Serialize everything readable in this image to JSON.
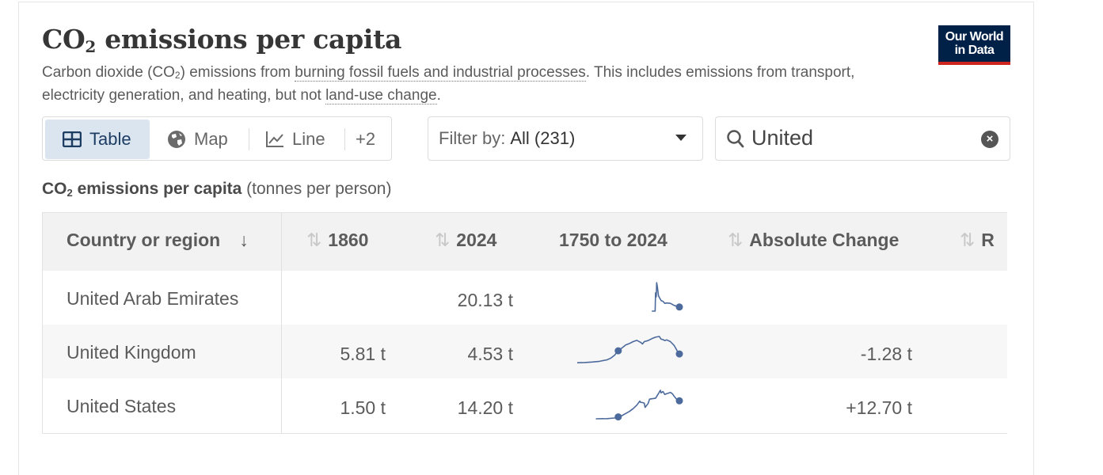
{
  "header": {
    "title_main": "CO",
    "title_sub": "2",
    "title_rest": " emissions per capita",
    "subtitle": {
      "p1": "Carbon dioxide (CO",
      "p1_sub": "2",
      "p2": ") emissions from ",
      "link1": "burning fossil fuels and industrial processes",
      "p3": ". This includes emissions from transport, electricity generation, and heating, but not ",
      "link2": "land-use change",
      "p4": "."
    },
    "logo_line1": "Our World",
    "logo_line2": "in Data"
  },
  "tabs": [
    {
      "label": "Table",
      "icon": "table-icon",
      "active": true
    },
    {
      "label": "Map",
      "icon": "globe-icon",
      "active": false
    },
    {
      "label": "Line",
      "icon": "line-chart-icon",
      "active": false
    },
    {
      "label": "+2",
      "active": false
    }
  ],
  "filter": {
    "prefix": "Filter by:",
    "value": "All (231)"
  },
  "search": {
    "value": "United"
  },
  "caption": {
    "bold_main": "CO",
    "bold_sub": "2",
    "bold_rest": " emissions per capita",
    "unit": " (tonnes per person)"
  },
  "chart_data": {
    "type": "table",
    "columns": [
      "Country or region",
      "1860",
      "2024",
      "1750 to 2024",
      "Absolute Change",
      "R"
    ],
    "rows": [
      {
        "country": "United Arab Emirates",
        "y1860": "",
        "y2024": "20.13 t",
        "abs_change": ""
      },
      {
        "country": "United Kingdom",
        "y1860": "5.81 t",
        "y2024": "4.53 t",
        "abs_change": "-1.28 t"
      },
      {
        "country": "United States",
        "y1860": "1.50 t",
        "y2024": "14.20 t",
        "abs_change": "+12.70 t"
      }
    ],
    "sparkline_range": [
      1750,
      2024
    ],
    "sparkline_color": "#4c6a9c",
    "sparklines": [
      {
        "country": "United Arab Emirates",
        "x": [
          1950,
          1959,
          1960,
          1962,
          1963,
          1965,
          1968,
          1970,
          1975,
          1980,
          1985,
          1990,
          2000,
          2010,
          2024
        ],
        "y": [
          0,
          0.1,
          90,
          70,
          140,
          120,
          75,
          68,
          52,
          48,
          38,
          40,
          38,
          28,
          20.13
        ],
        "markers": [
          2024
        ]
      },
      {
        "country": "United Kingdom",
        "x": [
          1750,
          1770,
          1790,
          1810,
          1830,
          1840,
          1850,
          1855,
          1860,
          1870,
          1880,
          1890,
          1900,
          1910,
          1920,
          1925,
          1930,
          1940,
          1950,
          1960,
          1970,
          1975,
          1980,
          1985,
          1990,
          2000,
          2010,
          2020,
          2024
        ],
        "y": [
          0.9,
          1.0,
          1.2,
          1.5,
          2.1,
          2.8,
          4.0,
          4.9,
          5.81,
          7.0,
          8.2,
          8.8,
          9.6,
          10.1,
          9.3,
          8.6,
          9.6,
          10.0,
          10.8,
          11.4,
          11.7,
          10.6,
          10.4,
          10.0,
          10.3,
          9.6,
          8.0,
          5.3,
          4.53
        ],
        "markers": [
          1860,
          2024
        ]
      },
      {
        "country": "United States",
        "x": [
          1800,
          1830,
          1850,
          1860,
          1870,
          1880,
          1890,
          1900,
          1910,
          1918,
          1920,
          1925,
          1930,
          1932,
          1940,
          1944,
          1950,
          1960,
          1970,
          1973,
          1975,
          1980,
          1985,
          1990,
          2000,
          2005,
          2010,
          2020,
          2024
        ],
        "y": [
          0.02,
          0.1,
          0.6,
          1.5,
          2.5,
          4.2,
          5.8,
          8.0,
          10.8,
          14.0,
          13.0,
          12.8,
          12.3,
          9.0,
          12.0,
          15.5,
          15.8,
          16.2,
          21.0,
          22.5,
          20.5,
          21.5,
          19.2,
          19.8,
          20.8,
          19.8,
          17.8,
          14.2,
          14.2
        ],
        "markers": [
          1860,
          2024
        ]
      }
    ]
  }
}
